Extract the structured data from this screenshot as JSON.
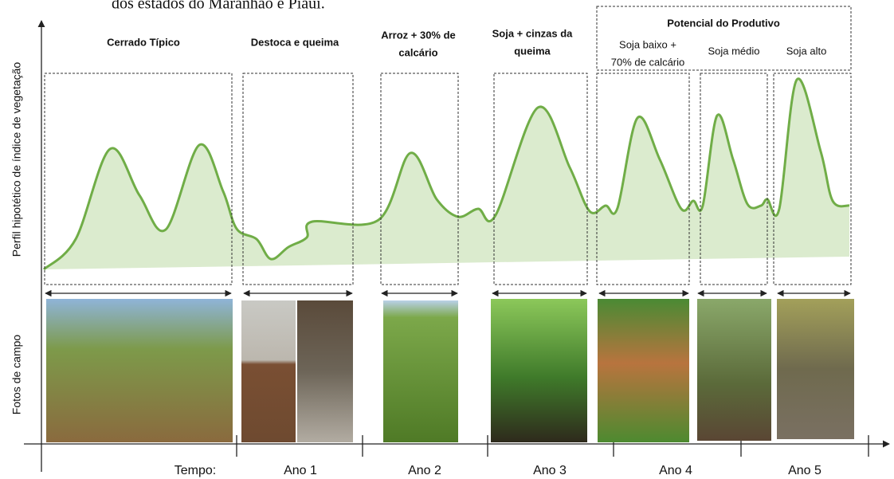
{
  "header": {
    "caption_fragment": "dos estados do Maranhão e Piauí."
  },
  "axes": {
    "y_top": "Perfil hipotético de índice de vegetação",
    "y_bottom": "Fotos de campo",
    "x_label": "Tempo:"
  },
  "stages": [
    {
      "lines": [
        "Cerrado Típico"
      ]
    },
    {
      "lines": [
        "Destoca  e queima"
      ]
    },
    {
      "lines": [
        "Arroz + 30% de",
        "calcário"
      ]
    },
    {
      "lines": [
        "Soja + cinzas da",
        "queima"
      ]
    }
  ],
  "productive_group": {
    "title": "Potencial do Produtivo",
    "items": [
      {
        "lines": [
          "Soja baixo +",
          "70% de calcário"
        ]
      },
      {
        "lines": [
          "Soja médio"
        ]
      },
      {
        "lines": [
          "Soja alto"
        ]
      }
    ]
  },
  "years": [
    "Ano 1",
    "Ano 2",
    "Ano 3",
    "Ano 4",
    "Ano 5"
  ]
}
